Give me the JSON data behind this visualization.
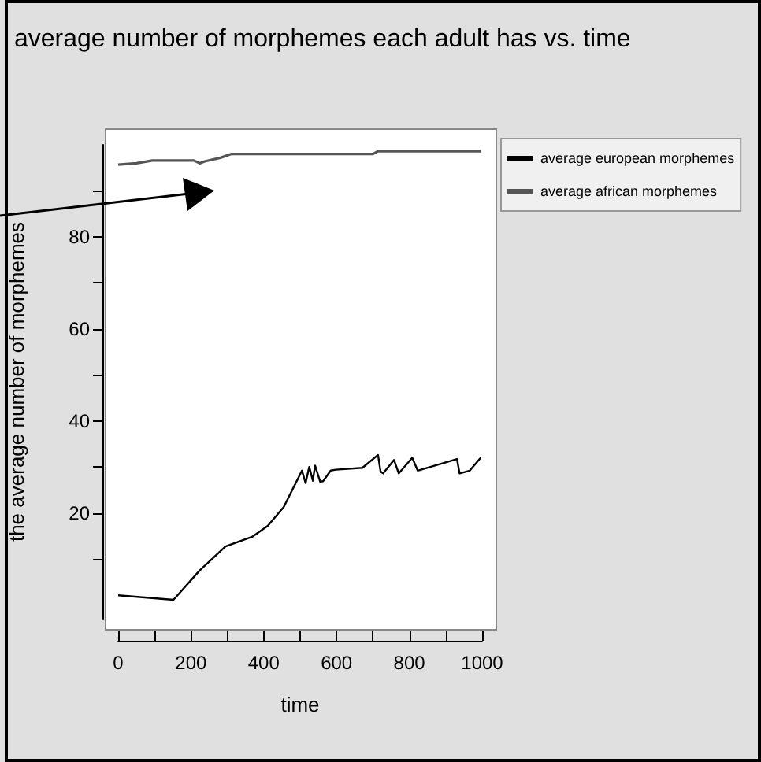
{
  "chart_data": {
    "type": "line",
    "title": "average number of morphemes each adult has vs. time",
    "xlabel": "time",
    "ylabel": "the average number of morphemes",
    "series": [
      {
        "name": "average european morphemes",
        "color": "#000000",
        "x": [
          0,
          152,
          224,
          295,
          368,
          411,
          455,
          505,
          515,
          525,
          535,
          541,
          555,
          563,
          584,
          598,
          671,
          714,
          721,
          728,
          758,
          771,
          808,
          823,
          931,
          938,
          966,
          996
        ],
        "values": [
          2.1,
          1.1,
          7.5,
          12.7,
          14.8,
          17.2,
          21.3,
          29.2,
          26.5,
          30,
          27,
          30.3,
          26.8,
          26.9,
          29.2,
          29.4,
          29.8,
          32.6,
          29,
          28.6,
          31.5,
          28.6,
          32,
          29.2,
          31.7,
          28.6,
          29.2,
          32
        ]
      },
      {
        "name": "average african morphemes",
        "color": "#555555",
        "x": [
          0,
          50,
          94,
          208,
          224,
          238,
          281,
          310,
          700,
          714,
          996
        ],
        "values": [
          95.7,
          96,
          96.6,
          96.6,
          96,
          96.4,
          97.2,
          98,
          98,
          98.6,
          98.6
        ]
      }
    ],
    "xlim": [
      0,
      1000
    ],
    "xticks": [
      0,
      {
        "value": 100,
        "label": null
      },
      200,
      {
        "value": 300,
        "label": null
      },
      400,
      {
        "value": 500,
        "label": null
      },
      600,
      {
        "value": 700,
        "label": null
      },
      800,
      {
        "value": 900,
        "label": null
      },
      1000
    ],
    "ylim": [
      -3,
      100
    ],
    "yticks": [
      {
        "value": 10,
        "label": null
      },
      20,
      {
        "value": 30,
        "label": null
      },
      40,
      {
        "value": 50,
        "label": null
      },
      60,
      {
        "value": 70,
        "label": null
      },
      80,
      {
        "value": 90,
        "label": null
      }
    ],
    "grid": false,
    "legend": "top right",
    "marker": "none",
    "line_style": "solid"
  }
}
